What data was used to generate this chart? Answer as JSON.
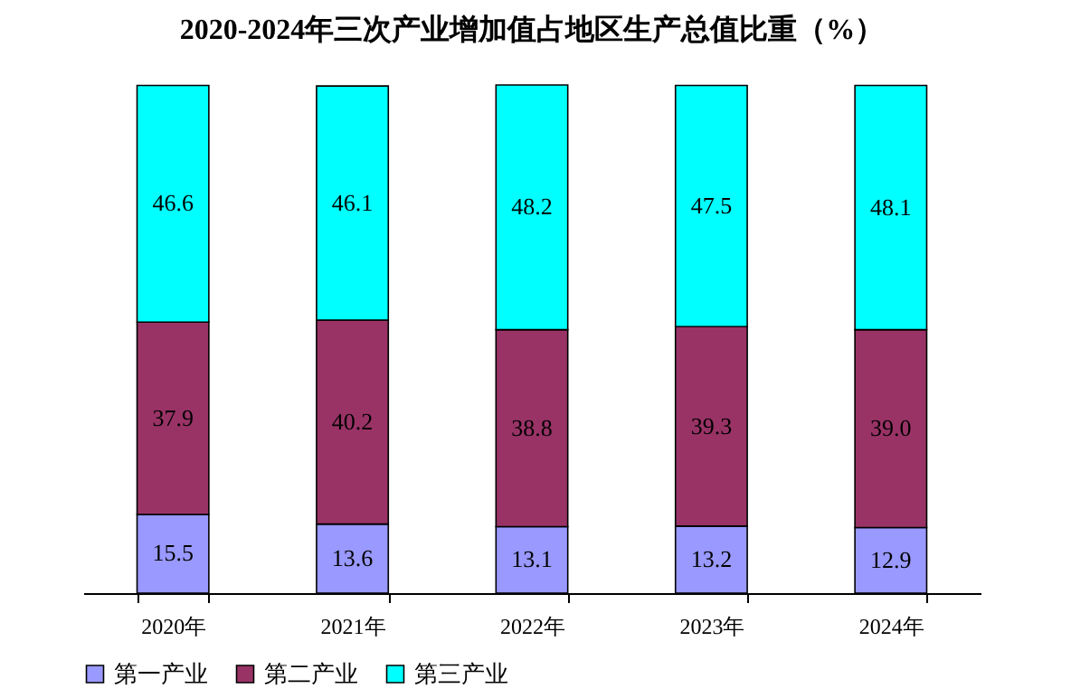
{
  "chart_data": {
    "type": "bar",
    "title": "2020-2024年三次产业增加值占地区生产总值比重（%）",
    "categories": [
      "2020年",
      "2021年",
      "2022年",
      "2023年",
      "2024年"
    ],
    "stacked": true,
    "legend": "bottom",
    "series": [
      {
        "name": "第一产业",
        "color": "#9999ff",
        "values": [
          15.5,
          13.6,
          13.1,
          13.2,
          12.9
        ],
        "value_labels": [
          "15.5",
          "13.6",
          "13.1",
          "13.2",
          "12.9"
        ]
      },
      {
        "name": "第二产业",
        "color": "#993366",
        "values": [
          37.9,
          40.2,
          38.8,
          39.3,
          39.0
        ],
        "value_labels": [
          "37.9",
          "40.2",
          "38.8",
          "39.3",
          "39.0"
        ]
      },
      {
        "name": "第三产业",
        "color": "#00ffff",
        "values": [
          46.6,
          46.1,
          48.2,
          47.5,
          48.1
        ],
        "value_labels": [
          "46.6",
          "46.1",
          "48.2",
          "47.5",
          "48.1"
        ]
      }
    ]
  }
}
